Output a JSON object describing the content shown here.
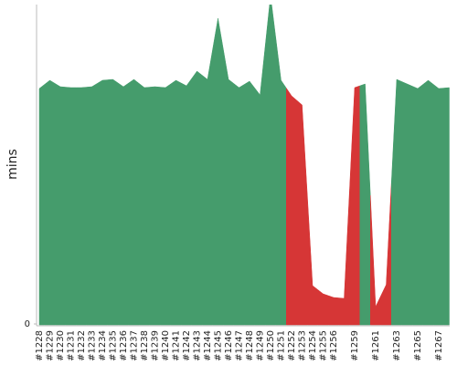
{
  "chart_data": {
    "type": "area",
    "y_label": "mins",
    "categories": [
      "#1228",
      "#1229",
      "#1230",
      "#1231",
      "#1232",
      "#1233",
      "#1234",
      "#1235",
      "#1236",
      "#1237",
      "#1238",
      "#1239",
      "#1240",
      "#1241",
      "#1242",
      "#1243",
      "#1244",
      "#1245",
      "#1246",
      "#1247",
      "#1248",
      "#1249",
      "#1250",
      "#1251",
      "#1252",
      "#1253",
      "#1254",
      "#1255",
      "#1256",
      null,
      "#1259",
      null,
      "#1261",
      null,
      "#1263",
      null,
      "#1265",
      null,
      "#1267",
      null
    ],
    "values": [
      25.8,
      26.7,
      26,
      25.9,
      25.9,
      26,
      26.7,
      26.8,
      26,
      26.8,
      25.9,
      26,
      25.9,
      26.7,
      26.1,
      27.7,
      26.8,
      33.5,
      26.8,
      25.9,
      26.6,
      25.1,
      36,
      26.7,
      25,
      24,
      4.2,
      3.3,
      2.9,
      2.8,
      25.9,
      26.3,
      1.9,
      4.3,
      26.8,
      26.3,
      25.8,
      26.7,
      25.8,
      25.9
    ],
    "colors": [
      "#459c6c",
      "#459c6c",
      "#459c6c",
      "#459c6c",
      "#459c6c",
      "#459c6c",
      "#459c6c",
      "#459c6c",
      "#459c6c",
      "#459c6c",
      "#459c6c",
      "#459c6c",
      "#459c6c",
      "#459c6c",
      "#459c6c",
      "#459c6c",
      "#459c6c",
      "#459c6c",
      "#459c6c",
      "#459c6c",
      "#459c6c",
      "#459c6c",
      "#459c6c",
      "#459c6c",
      "#d63636",
      "#d63636",
      "#d63636",
      "#d63636",
      "#d63636",
      "#d63636",
      "#d63636",
      "#459c6c",
      "#d63636",
      "#d63636",
      "#459c6c",
      "#459c6c",
      "#459c6c",
      "#459c6c",
      "#459c6c",
      "#459c6c"
    ],
    "ylim": [
      0,
      35
    ],
    "yticks": [
      0
    ]
  }
}
